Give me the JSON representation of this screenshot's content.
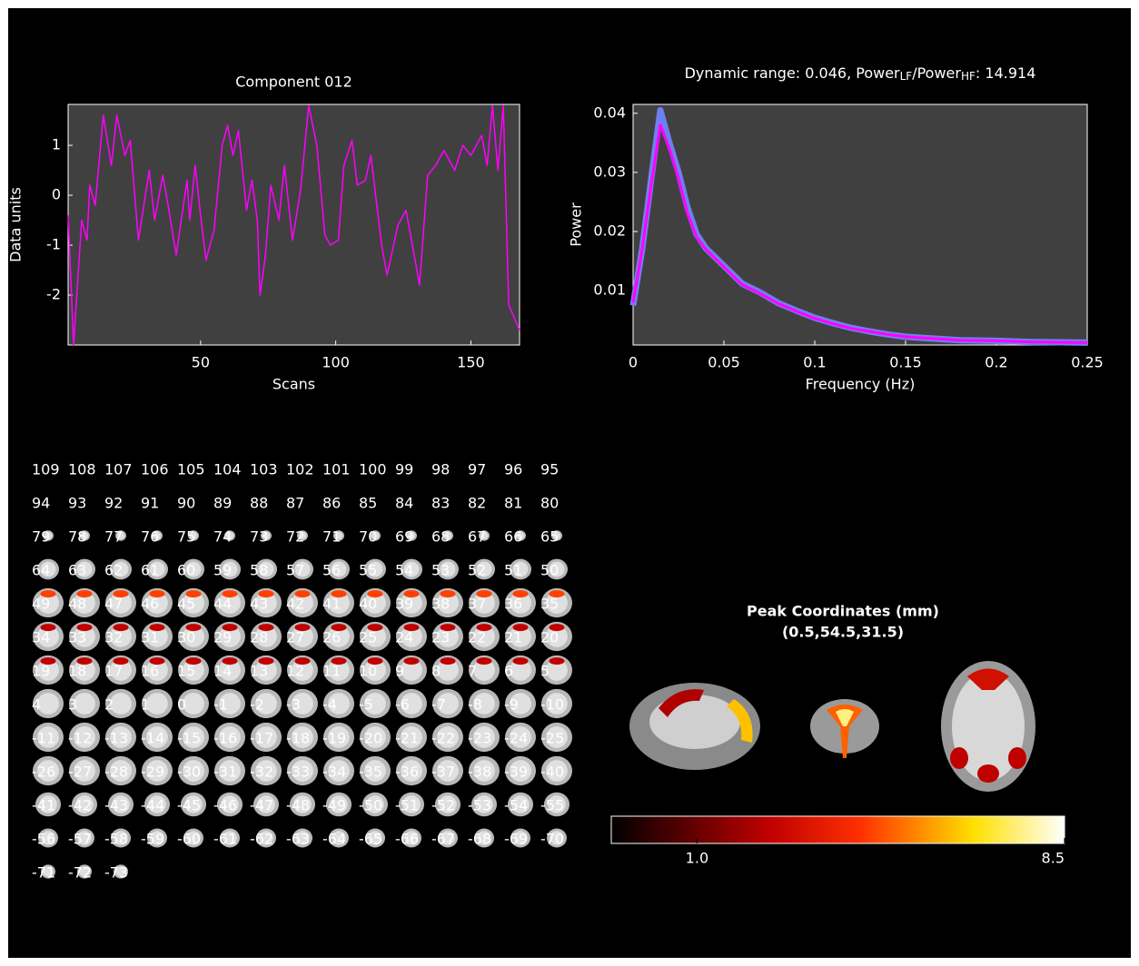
{
  "chart_data": [
    {
      "type": "line",
      "title": "Component 012",
      "xlabel": "Scans",
      "ylabel": "Data units",
      "x": [
        1,
        3,
        6,
        8,
        9,
        11,
        14,
        17,
        19,
        22,
        24,
        27,
        31,
        33,
        36,
        38,
        41,
        45,
        46,
        48,
        50,
        52,
        55,
        58,
        60,
        62,
        64,
        67,
        69,
        71,
        72,
        74,
        76,
        79,
        81,
        84,
        87,
        90,
        93,
        96,
        98,
        101,
        103,
        106,
        108,
        111,
        113,
        117,
        119,
        123,
        126,
        128,
        131,
        134,
        137,
        140,
        144,
        147,
        150,
        154,
        156,
        158,
        160,
        162,
        164,
        168
      ],
      "series": [
        {
          "color": "#ff00ff",
          "values": [
            -0.4,
            -3.0,
            -0.5,
            -0.9,
            0.2,
            -0.2,
            1.6,
            0.6,
            1.6,
            0.8,
            1.1,
            -0.9,
            0.5,
            -0.5,
            0.4,
            -0.2,
            -1.2,
            0.3,
            -0.5,
            0.6,
            -0.4,
            -1.3,
            -0.7,
            1.0,
            1.4,
            0.8,
            1.3,
            -0.3,
            0.3,
            -0.5,
            -2.0,
            -1.2,
            0.2,
            -0.5,
            0.6,
            -0.9,
            0.1,
            1.8,
            1.0,
            -0.8,
            -1.0,
            -0.9,
            0.6,
            1.1,
            0.2,
            0.3,
            0.8,
            -1.0,
            -1.6,
            -0.6,
            -0.3,
            -0.9,
            -1.8,
            0.4,
            0.6,
            0.9,
            0.5,
            1.0,
            0.8,
            1.2,
            0.6,
            1.8,
            0.5,
            1.8,
            -2.2,
            -2.7
          ]
        }
      ],
      "xlim": [
        1,
        168
      ],
      "ylim": [
        -3.0,
        1.82
      ],
      "xticks": [
        50,
        100,
        150
      ],
      "yticks": [
        -2,
        -1,
        0,
        1
      ]
    },
    {
      "type": "line",
      "title": [
        "Dynamic range: 0.046, Power",
        "LF",
        "/Power",
        "HF",
        ": 14.914"
      ],
      "xlabel": "Frequency (Hz)",
      "ylabel": "Power",
      "x": [
        0,
        0.005,
        0.01,
        0.015,
        0.02,
        0.025,
        0.03,
        0.035,
        0.04,
        0.05,
        0.06,
        0.07,
        0.08,
        0.09,
        0.1,
        0.11,
        0.12,
        0.13,
        0.14,
        0.15,
        0.16,
        0.17,
        0.18,
        0.2,
        0.22,
        0.25
      ],
      "series": [
        {
          "color": "#6f7ff0",
          "width": 7,
          "values": [
            0.0075,
            0.017,
            0.029,
            0.0405,
            0.035,
            0.03,
            0.024,
            0.0195,
            0.0172,
            0.0142,
            0.0112,
            0.0097,
            0.0079,
            0.0066,
            0.0054,
            0.0045,
            0.0037,
            0.0031,
            0.0026,
            0.0022,
            0.002,
            0.0018,
            0.0016,
            0.0015,
            0.0013,
            0.0012
          ]
        },
        {
          "color": "#ff00ff",
          "width": 3,
          "values": [
            0.008,
            0.017,
            0.028,
            0.038,
            0.034,
            0.029,
            0.023,
            0.019,
            0.017,
            0.014,
            0.011,
            0.0095,
            0.0078,
            0.0065,
            0.0053,
            0.0044,
            0.0036,
            0.0031,
            0.0026,
            0.0022,
            0.002,
            0.0018,
            0.0016,
            0.0015,
            0.0013,
            0.0012
          ]
        }
      ],
      "xlim": [
        0,
        0.25
      ],
      "ylim": [
        0.0008,
        0.0415
      ],
      "xticks": [
        0,
        0.05,
        0.1,
        0.15,
        0.2,
        0.25
      ],
      "yticks": [
        0.01,
        0.02,
        0.03,
        0.04
      ]
    }
  ],
  "montage": {
    "slices": [
      109,
      108,
      107,
      106,
      105,
      104,
      103,
      102,
      101,
      100,
      99,
      98,
      97,
      96,
      95,
      94,
      93,
      92,
      91,
      90,
      89,
      88,
      87,
      86,
      85,
      84,
      83,
      82,
      81,
      80,
      79,
      78,
      77,
      76,
      75,
      74,
      73,
      72,
      71,
      70,
      69,
      68,
      67,
      66,
      65,
      64,
      63,
      62,
      61,
      60,
      59,
      58,
      57,
      56,
      55,
      54,
      53,
      52,
      51,
      50,
      49,
      48,
      47,
      46,
      45,
      44,
      43,
      42,
      41,
      40,
      39,
      38,
      37,
      36,
      35,
      34,
      33,
      32,
      31,
      30,
      29,
      28,
      27,
      26,
      25,
      24,
      23,
      22,
      21,
      20,
      19,
      18,
      17,
      16,
      15,
      14,
      13,
      12,
      11,
      10,
      9,
      8,
      7,
      6,
      5,
      4,
      3,
      2,
      1,
      0,
      -1,
      -2,
      -3,
      -4,
      -5,
      -6,
      -7,
      -8,
      -9,
      -10,
      -11,
      -12,
      -13,
      -14,
      -15,
      -16,
      -17,
      -18,
      -19,
      -20,
      -21,
      -22,
      -23,
      -24,
      -25,
      -26,
      -27,
      -28,
      -29,
      -30,
      -31,
      -32,
      -33,
      -34,
      -35,
      -36,
      -37,
      -38,
      -39,
      -40,
      -41,
      -42,
      -43,
      -44,
      -45,
      -46,
      -47,
      -48,
      -49,
      -50,
      -51,
      -52,
      -53,
      -54,
      -55,
      -56,
      -57,
      -58,
      -59,
      -60,
      -61,
      -62,
      -63,
      -64,
      -65,
      -66,
      -67,
      -68,
      -69,
      -70,
      -71,
      -72,
      -73
    ]
  },
  "peak": {
    "title": "Peak Coordinates (mm)",
    "coords": "(0.5,54.5,31.5)"
  },
  "colorbar": {
    "lim": [
      -0.75,
      8.5
    ],
    "ticks": [
      {
        "value": 1,
        "label": "1.0"
      },
      8.5
    ]
  }
}
